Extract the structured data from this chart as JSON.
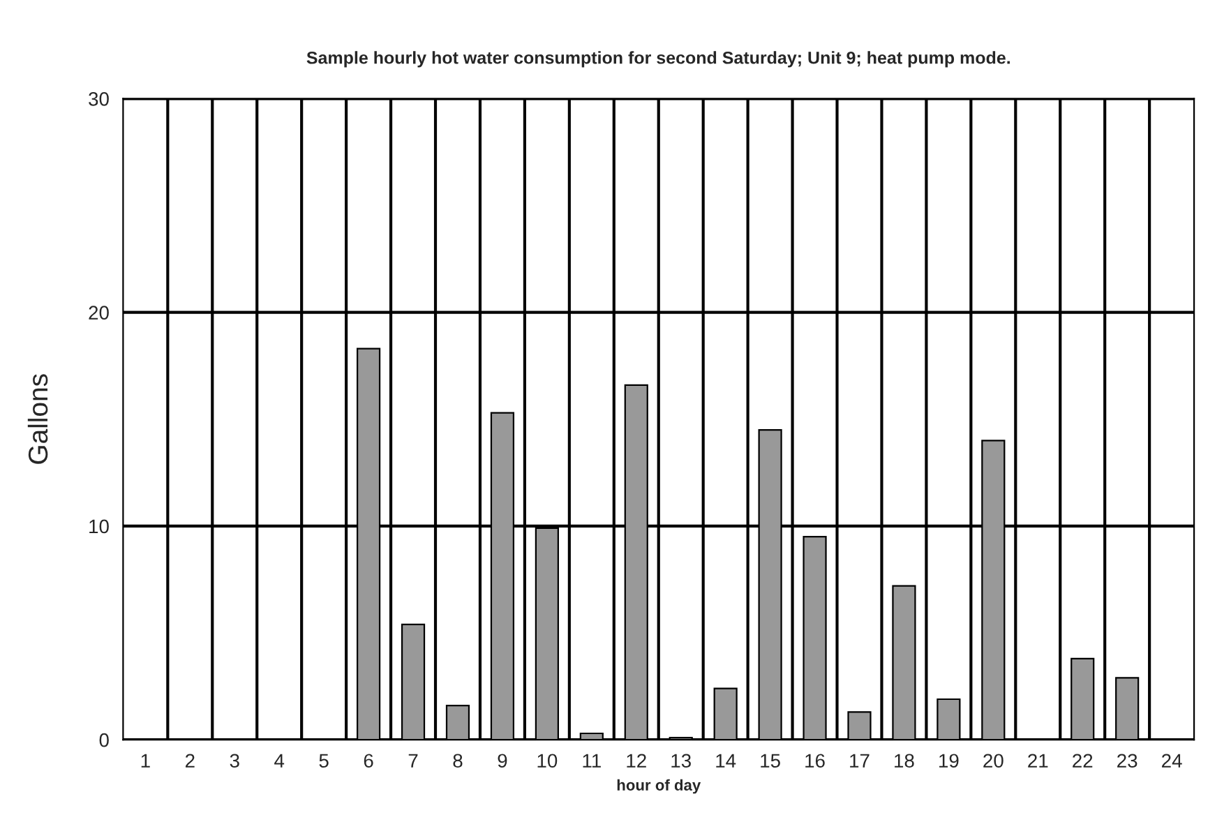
{
  "chart_data": {
    "type": "bar",
    "title": "Sample hourly hot water consumption for second Saturday; Unit 9; heat pump mode.",
    "xlabel": "hour of day",
    "ylabel": "Gallons",
    "categories": [
      "1",
      "2",
      "3",
      "4",
      "5",
      "6",
      "7",
      "8",
      "9",
      "10",
      "11",
      "12",
      "13",
      "14",
      "15",
      "16",
      "17",
      "18",
      "19",
      "20",
      "21",
      "22",
      "23",
      "24"
    ],
    "values": [
      0,
      0,
      0,
      0,
      0,
      18.3,
      5.4,
      1.6,
      15.3,
      9.9,
      0.3,
      16.6,
      0.1,
      2.4,
      14.5,
      9.5,
      1.3,
      7.2,
      1.9,
      14.0,
      0,
      3.8,
      2.9,
      0
    ],
    "color": "#999999",
    "ylim": [
      0,
      30
    ],
    "yticks": [
      0,
      10,
      20,
      30
    ],
    "grid": true
  }
}
